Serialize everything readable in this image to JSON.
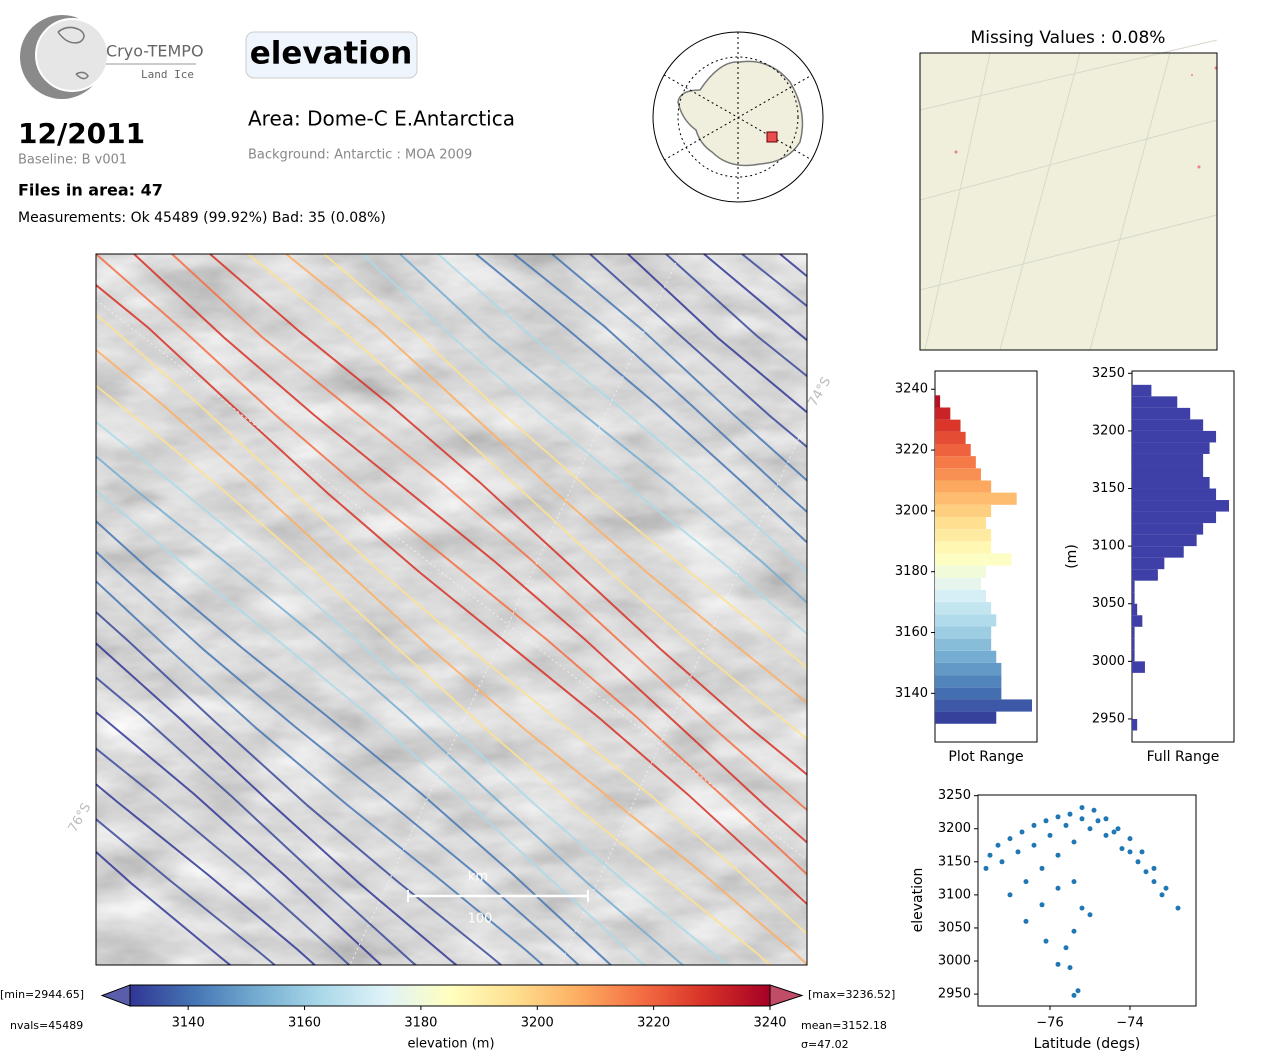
{
  "header": {
    "logo_name": "Cryo-TEMPO",
    "logo_sub": "Land Ice",
    "date": "12/2011",
    "baseline": "Baseline: B v001",
    "files": "Files in area: 47",
    "measurements": "Measurements: Ok 45489 (99.92%) Bad: 35 (0.08%)",
    "parameter": "elevation",
    "area": "Area: Dome-C E.Antarctica",
    "background": "Background: Antarctic : MOA 2009"
  },
  "map": {
    "lat_labels": [
      "74°S",
      "76°S"
    ],
    "scalebar_unit": "km",
    "scalebar_value": "100"
  },
  "colorbar": {
    "label": "elevation (m)",
    "xlim": [
      3130,
      3240
    ],
    "xticks": [
      3140,
      3160,
      3180,
      3200,
      3220,
      3240
    ],
    "colormap": [
      "#313695",
      "#4575b4",
      "#74add1",
      "#abd9e9",
      "#e0f3f8",
      "#ffffbf",
      "#fee090",
      "#fdae61",
      "#f46d43",
      "#d73027",
      "#a50026"
    ],
    "min_label": "[min=2944.65]",
    "max_label": "[max=3236.52]",
    "nvals": "nvals=45489",
    "mean": "mean=3152.18",
    "sigma": "σ=47.02"
  },
  "chart_data": [
    {
      "type": "map",
      "title": "Missing Values : 0.08%"
    },
    {
      "type": "histogram",
      "xlabel": "Plot Range",
      "ylim": [
        3124,
        3246
      ],
      "yticks": [
        3140,
        3160,
        3180,
        3200,
        3220,
        3240
      ],
      "colored_by": "colorbar",
      "bins": [
        3130,
        3134,
        3138,
        3142,
        3146,
        3150,
        3154,
        3158,
        3162,
        3166,
        3170,
        3174,
        3178,
        3182,
        3186,
        3190,
        3194,
        3198,
        3202,
        3206,
        3210,
        3214,
        3218,
        3222,
        3226,
        3230,
        3234,
        3238
      ],
      "values": [
        60,
        95,
        65,
        65,
        65,
        60,
        55,
        55,
        60,
        55,
        50,
        45,
        50,
        75,
        55,
        55,
        50,
        55,
        80,
        55,
        45,
        40,
        35,
        30,
        25,
        15,
        5
      ]
    },
    {
      "type": "histogram",
      "xlabel": "Full Range",
      "ylabel": "(m)",
      "color": "#3f3fa8",
      "ylim": [
        2930,
        3252
      ],
      "yticks": [
        2950,
        3000,
        3050,
        3100,
        3150,
        3200,
        3250
      ],
      "bins": [
        2940,
        2950,
        2960,
        2970,
        2980,
        2990,
        3000,
        3010,
        3020,
        3030,
        3040,
        3050,
        3060,
        3070,
        3080,
        3090,
        3100,
        3110,
        3120,
        3130,
        3140,
        3150,
        3160,
        3170,
        3180,
        3190,
        3200,
        3210,
        3220,
        3230,
        3240
      ],
      "values": [
        4,
        0,
        0,
        0,
        0,
        10,
        2,
        2,
        2,
        8,
        4,
        2,
        2,
        20,
        25,
        40,
        50,
        55,
        65,
        75,
        65,
        60,
        55,
        55,
        60,
        65,
        55,
        45,
        35,
        15
      ]
    },
    {
      "type": "scatter",
      "xlabel": "Latitude (degs)",
      "ylabel": "elevation",
      "color": "#1f77b4",
      "xlim": [
        -77.8,
        -72.35
      ],
      "ylim": [
        2932,
        3251
      ],
      "xticks": [
        {
          "value": -76,
          "label": "−76"
        },
        {
          "value": -74,
          "label": "−74"
        }
      ],
      "yticks": [
        2950,
        3000,
        3050,
        3100,
        3150,
        3200,
        3250
      ],
      "x": [
        -77.5,
        -77.3,
        -77.0,
        -76.7,
        -76.4,
        -76.1,
        -75.8,
        -75.5,
        -75.2,
        -74.9,
        -74.6,
        -74.3,
        -74.0,
        -73.7,
        -73.4,
        -73.1,
        -72.8,
        -77.6,
        -77.2,
        -76.8,
        -76.4,
        -76.0,
        -75.6,
        -75.2,
        -74.8,
        -74.4,
        -74.0,
        -73.6,
        -73.2,
        -77.0,
        -76.6,
        -76.2,
        -75.8,
        -75.4,
        -75.0,
        -74.6,
        -74.2,
        -73.8,
        -73.4,
        -76.6,
        -76.2,
        -75.8,
        -75.4,
        -75.2,
        -75.4,
        -75.6,
        -75.8,
        -75.5,
        -75.3,
        -75.4,
        -76.1,
        -75.0
      ],
      "values": [
        3160,
        3175,
        3185,
        3195,
        3205,
        3212,
        3218,
        3222,
        3232,
        3228,
        3215,
        3200,
        3185,
        3165,
        3140,
        3110,
        3080,
        3140,
        3150,
        3165,
        3175,
        3190,
        3205,
        3215,
        3212,
        3195,
        3165,
        3135,
        3100,
        3100,
        3120,
        3140,
        3160,
        3180,
        3200,
        3190,
        3170,
        3150,
        3120,
        3060,
        3085,
        3110,
        3120,
        3080,
        3045,
        3020,
        2995,
        2990,
        2955,
        2948,
        3030,
        3070
      ]
    }
  ]
}
